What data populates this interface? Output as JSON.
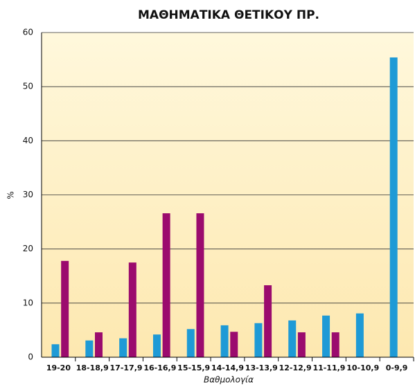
{
  "chart_data": {
    "type": "bar",
    "title": "ΜΑΘΗΜΑΤΙΚΑ ΘΕΤΙΚΟΥ ΠΡ.",
    "y_label": "%",
    "x_label": "Βαθμολογία",
    "categories": [
      "19-20",
      "18-18,9",
      "17-17,9",
      "16-16,9",
      "15-15,9",
      "14-14,9",
      "13-13,9",
      "12-12,9",
      "11-11,9",
      "10-10,9",
      "0-9,9"
    ],
    "series": [
      {
        "color": "#1e9ad6",
        "values": [
          2.4,
          3.1,
          3.5,
          4.2,
          5.2,
          5.9,
          6.3,
          6.8,
          7.7,
          8.1,
          55.4
        ]
      },
      {
        "color": "#9b0b6e",
        "values": [
          17.8,
          4.6,
          17.5,
          26.6,
          26.6,
          4.7,
          13.3,
          4.6,
          4.6,
          null,
          null
        ]
      }
    ],
    "ylim": [
      0,
      60
    ],
    "yticks": [
      0,
      10,
      20,
      30,
      40,
      50,
      60
    ],
    "grid": true
  }
}
